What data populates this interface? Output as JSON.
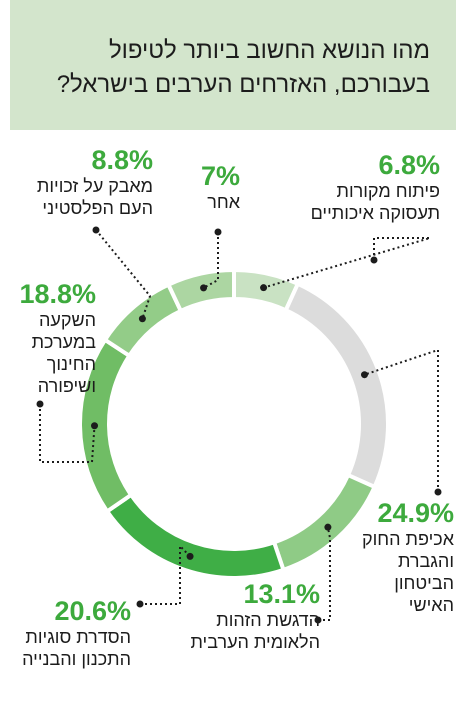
{
  "title": "מהו הנושא החשוב ביותר לטיפול בעבורכם, האזרחים הערבים בישראל?",
  "colors": {
    "header_bg": "#d3e5cc",
    "accent": "#3daa3d"
  },
  "chart_data": {
    "type": "pie",
    "variant": "donut",
    "title": "מהו הנושא החשוב ביותר לטיפול בעבורכם, האזרחים הערבים בישראל?",
    "slices": [
      {
        "label": "פיתוח מקורות\nתעסוקה איכותיים",
        "value": 6.8,
        "display": "6.8%",
        "color": "#c9e2c3"
      },
      {
        "label": "אכיפת החוק\nוהגברת\nהביטחון\nהאישי",
        "value": 24.9,
        "display": "24.9%",
        "color": "#dcdcdc"
      },
      {
        "label": "הדגשת הזהות\nהלאומית הערבית",
        "value": 13.1,
        "display": "13.1%",
        "color": "#8fcb86"
      },
      {
        "label": "הסדרת סוגיות\nהתכנון והבנייה",
        "value": 20.6,
        "display": "20.6%",
        "color": "#3fae46"
      },
      {
        "label": "השקעה\nבמערכת\nהחינוך\nושיפורה",
        "value": 18.8,
        "display": "18.8%",
        "color": "#70bd65"
      },
      {
        "label": "מאבק על זכויות\nהעם הפלסטיני",
        "value": 8.8,
        "display": "8.8%",
        "color": "#93cc88"
      },
      {
        "label": "אחר",
        "value": 7,
        "display": "7%",
        "color": "#acd6a2"
      }
    ]
  }
}
